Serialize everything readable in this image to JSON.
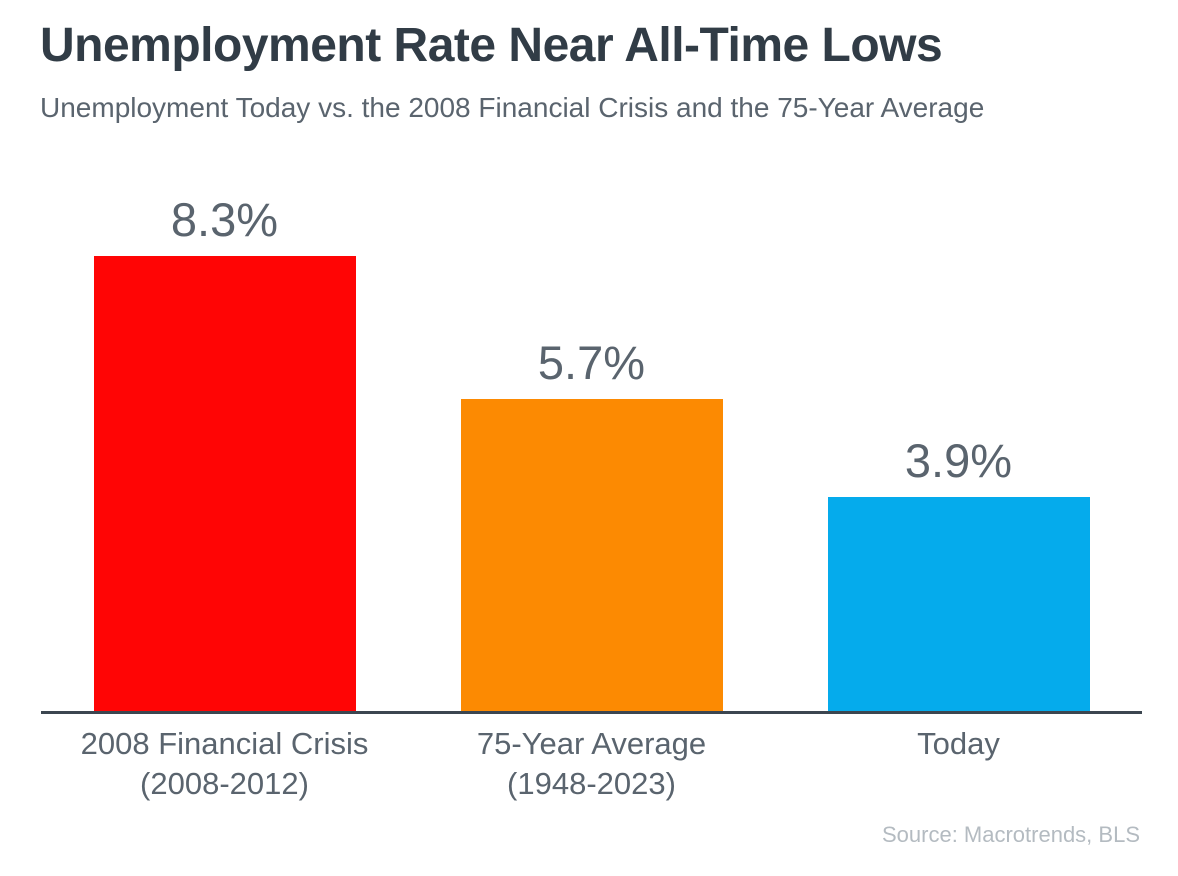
{
  "page": {
    "background_color": "#ffffff"
  },
  "header": {
    "title": "Unemployment Rate Near All-Time Lows",
    "subtitle": "Unemployment Today vs. the 2008 Financial Crisis and the 75-Year Average",
    "title_color": "#313c46",
    "subtitle_color": "#5a646e"
  },
  "chart_data": {
    "type": "bar",
    "title": "Unemployment Rate Near All-Time Lows",
    "subtitle": "Unemployment Today vs. the 2008 Financial Crisis and the 75-Year Average",
    "categories": [
      "2008 Financial Crisis (2008-2012)",
      "75-Year Average (1948-2023)",
      "Today"
    ],
    "category_lines": [
      [
        "2008 Financial Crisis",
        "(2008-2012)"
      ],
      [
        "75-Year Average",
        "(1948-2023)"
      ],
      [
        "Today"
      ]
    ],
    "values": [
      8.3,
      5.7,
      3.9
    ],
    "value_labels": [
      "8.3%",
      "5.7%",
      "3.9%"
    ],
    "bar_colors": [
      "#ff0505",
      "#fc8a02",
      "#05abec"
    ],
    "xlabel": "",
    "ylabel": "",
    "ylim": [
      0,
      9
    ],
    "grid": false,
    "legend": false,
    "axis_line_color": "#3c4650",
    "label_color": "#5a646e",
    "value_label_position": "above-bar"
  },
  "footer": {
    "source": "Source: Macrotrends, BLS",
    "source_color": "#b4bbc1"
  }
}
